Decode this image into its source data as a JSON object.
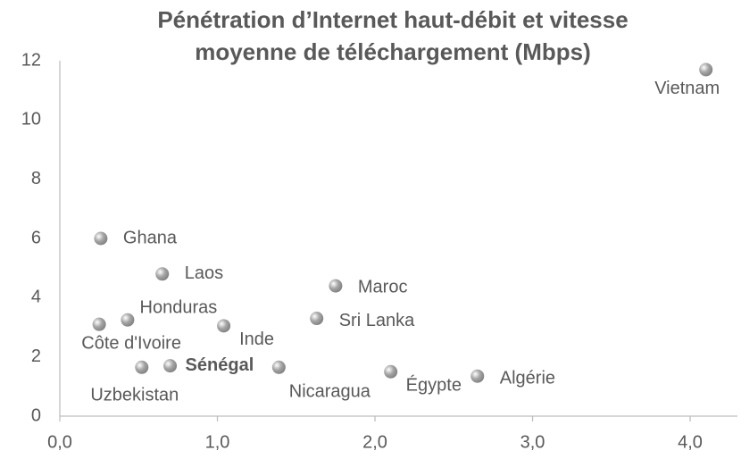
{
  "chart_data": {
    "type": "scatter",
    "title": [
      "Pénétration d’Internet haut-débit  et vitesse",
      "moyenne de téléchargement (Mbps)"
    ],
    "labels": [
      "Vietnam",
      "Ghana",
      "Laos",
      "Maroc",
      "Honduras",
      "Côte d'Ivoire",
      "Inde",
      "Sri Lanka",
      "Sénégal",
      "Uzbekistan",
      "Nicaragua",
      "Égypte",
      "Algérie"
    ],
    "x": [
      4.1,
      0.26,
      0.65,
      1.75,
      0.43,
      0.25,
      1.04,
      1.63,
      0.7,
      0.52,
      1.39,
      2.1,
      2.65
    ],
    "values": [
      11.7,
      6.0,
      4.8,
      4.4,
      3.25,
      3.1,
      3.05,
      3.3,
      1.7,
      1.65,
      1.65,
      1.5,
      1.35
    ],
    "bold": [
      false,
      false,
      false,
      false,
      false,
      false,
      false,
      false,
      true,
      false,
      false,
      false,
      false
    ],
    "color": "#a6a6a6",
    "xlim": [
      0,
      4.3
    ],
    "xticks": [
      {
        "value": 0,
        "label": "0,0"
      },
      {
        "value": 1,
        "label": "1,0"
      },
      {
        "value": 2,
        "label": "2,0"
      },
      {
        "value": 3,
        "label": "3,0"
      },
      {
        "value": 4,
        "label": "4,0"
      }
    ],
    "ylim": [
      0,
      12
    ],
    "yticks": [
      0,
      2,
      4,
      6,
      8,
      10,
      12
    ],
    "grid": false
  }
}
